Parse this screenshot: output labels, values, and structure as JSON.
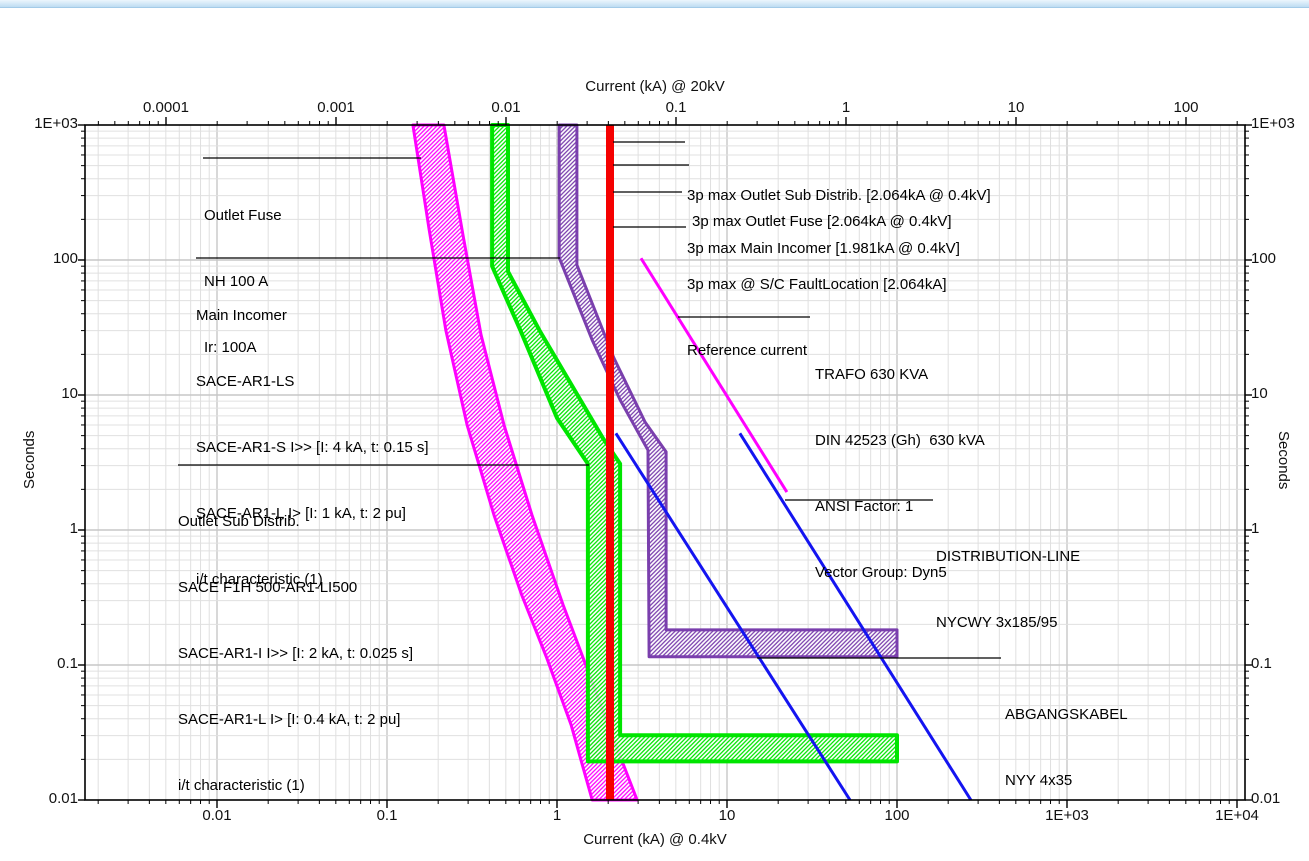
{
  "window": {
    "top_strip_color": "#bedcf2"
  },
  "chart_data": {
    "type": "line",
    "subtype": "time-current-protection-coordination",
    "x_axis_top": {
      "title": "Current (kA) @ 20kV",
      "scale": "log",
      "tick_labels": [
        "0.0001",
        "0.001",
        "0.01",
        "0.1",
        "1",
        "10",
        "100"
      ],
      "tick_values": [
        0.0001,
        0.001,
        0.01,
        0.1,
        1,
        10,
        100
      ]
    },
    "x_axis_bottom": {
      "title": "Current (kA) @ 0.4kV",
      "scale": "log",
      "tick_labels": [
        "0.01",
        "0.1",
        "1",
        "10",
        "100",
        "1E+03",
        "1E+04"
      ],
      "tick_values": [
        0.01,
        0.1,
        1,
        10,
        100,
        1000,
        10000
      ],
      "voltage_ratio_to_top_axis": 50
    },
    "y_axis": {
      "title": "Seconds",
      "scale": "log",
      "tick_labels": [
        "1E+03",
        "100",
        "10",
        "1",
        "0.1",
        "0.01"
      ],
      "tick_values": [
        1000,
        100,
        10,
        1,
        0.1,
        0.01
      ]
    },
    "grid": "log-minor-and-decade",
    "series": [
      {
        "id": "outlet-fuse-band",
        "name": "Outlet Fuse NH 100 A",
        "type": "band",
        "color": "#ff00ff",
        "min_curve": [
          [
            0.142,
            1000
          ],
          [
            0.177,
            167
          ],
          [
            0.222,
            30
          ],
          [
            0.296,
            6.0
          ],
          [
            0.426,
            1.29
          ],
          [
            0.62,
            0.33
          ],
          [
            0.87,
            0.113
          ],
          [
            1.21,
            0.036
          ],
          [
            1.61,
            0.01
          ]
        ],
        "max_curve": [
          [
            0.216,
            1000
          ],
          [
            0.28,
            153
          ],
          [
            0.357,
            28
          ],
          [
            0.488,
            6.0
          ],
          [
            0.713,
            1.29
          ],
          [
            1.085,
            0.28
          ],
          [
            1.54,
            0.087
          ],
          [
            2.05,
            0.033
          ],
          [
            2.96,
            0.01
          ]
        ]
      },
      {
        "id": "outlet-sub-distrib-band",
        "name": "Outlet Sub Distrib. SACE F1H 500-AR1-LI500",
        "type": "band",
        "color": "#00e500",
        "min_curve": [
          [
            0.415,
            1000
          ],
          [
            0.415,
            90
          ],
          [
            0.61,
            30
          ],
          [
            1.0,
            6.75
          ],
          [
            1.52,
            3.1
          ],
          [
            1.52,
            0.0193
          ],
          [
            100,
            0.0193
          ]
        ],
        "max_curve": [
          [
            0.515,
            1000
          ],
          [
            0.515,
            82
          ],
          [
            0.79,
            30
          ],
          [
            1.86,
            4.8
          ],
          [
            2.35,
            3.1
          ],
          [
            2.35,
            0.0302
          ],
          [
            100,
            0.0302
          ]
        ]
      },
      {
        "id": "main-incomer-band",
        "name": "Main Incomer SACE-AR1-LS",
        "type": "band",
        "color": "#7a3fad",
        "min_curve": [
          [
            1.03,
            1000
          ],
          [
            1.03,
            104
          ],
          [
            1.61,
            25.5
          ],
          [
            2.35,
            9.2
          ],
          [
            3.43,
            3.9
          ],
          [
            3.48,
            0.115
          ],
          [
            100,
            0.115
          ]
        ],
        "max_curve": [
          [
            1.31,
            1000
          ],
          [
            1.31,
            92
          ],
          [
            2.16,
            18.8
          ],
          [
            3.3,
            6.3
          ],
          [
            4.38,
            3.79
          ],
          [
            4.38,
            0.182
          ],
          [
            100,
            0.182
          ]
        ]
      },
      {
        "id": "trafo-damage-curve",
        "name": "TRAFO 630 KVA",
        "type": "line",
        "color": "#ff00ff",
        "points": [
          [
            3.12,
            103
          ],
          [
            22.5,
            1.91
          ]
        ]
      },
      {
        "id": "abgangskabel-damage-curve",
        "name": "ABGANGSKABEL NYY 4x35",
        "type": "line",
        "color": "#1414f0",
        "points": [
          [
            2.22,
            5.2
          ],
          [
            52.9,
            0.01
          ]
        ]
      },
      {
        "id": "distribution-line-damage-curve",
        "name": "DISTRIBUTION-LINE NYCWY 3x185/95",
        "type": "line",
        "color": "#1414f0",
        "points": [
          [
            11.9,
            5.2
          ],
          [
            272,
            0.01
          ]
        ]
      },
      {
        "id": "reference-current-line",
        "name": "Reference current",
        "type": "vline",
        "color": "#f50000",
        "x_kA": 2.064
      }
    ],
    "annotations": [
      {
        "id": "outlet-fuse-label",
        "lines": [
          "Outlet Fuse",
          "NH 100 A",
          "Ir: 100A"
        ],
        "callout": [
          203,
          158,
          421,
          158
        ]
      },
      {
        "id": "main-incomer-label",
        "lines": [
          "Main Incomer",
          "SACE-AR1-LS",
          "SACE-AR1-S I>> [I: 4 kA, t: 0.15 s]",
          "SACE-AR1-L I> [I: 1 kA, t: 2 pu]",
          "i/t characteristic (1)"
        ],
        "callout": [
          196,
          258,
          560,
          258
        ]
      },
      {
        "id": "outlet-sub-distrib-label",
        "lines": [
          "Outlet Sub Distrib.",
          "SACE F1H 500-AR1-LI500",
          "SACE-AR1-I I>> [I: 2 kA, t: 0.025 s]",
          "SACE-AR1-L I> [I: 0.4 kA, t: 2 pu]",
          "i/t characteristic (1)"
        ],
        "callout": [
          178,
          465,
          589,
          465
        ]
      },
      {
        "id": "sc-outlet-sub-distrib-label",
        "lines": [
          "3p max Outlet Sub Distrib. [2.064kA @ 0.4kV]"
        ],
        "callout": [
          613,
          142,
          685,
          142
        ]
      },
      {
        "id": "sc-outlet-fuse-label",
        "lines": [
          "3p max Outlet Fuse [2.064kA @ 0.4kV]"
        ],
        "callout": [
          613,
          165,
          689,
          165
        ]
      },
      {
        "id": "sc-main-incomer-label",
        "lines": [
          "3p max Main Incomer [1.981kA @ 0.4kV]"
        ],
        "callout": [
          613,
          192,
          682,
          192
        ]
      },
      {
        "id": "sc-fault-location-label",
        "lines": [
          "3p max @ S/C FaultLocation [2.064kA]",
          "Reference current"
        ],
        "callout": [
          613,
          227,
          686,
          227
        ]
      },
      {
        "id": "trafo-label",
        "lines": [
          "TRAFO 630 KVA",
          "DIN 42523 (Gh)  630 kVA",
          "ANSI Factor: 1",
          "Vector Group: Dyn5"
        ],
        "callout": [
          678,
          317,
          810,
          317
        ]
      },
      {
        "id": "distribution-line-label",
        "lines": [
          "DISTRIBUTION-LINE",
          "NYCWY 3x185/95"
        ],
        "callout": [
          785,
          500,
          933,
          500
        ]
      },
      {
        "id": "abgangskabel-label",
        "lines": [
          "ABGANGSKABEL",
          "NYY 4x35"
        ],
        "callout": [
          757,
          658,
          1001,
          658
        ]
      }
    ]
  }
}
